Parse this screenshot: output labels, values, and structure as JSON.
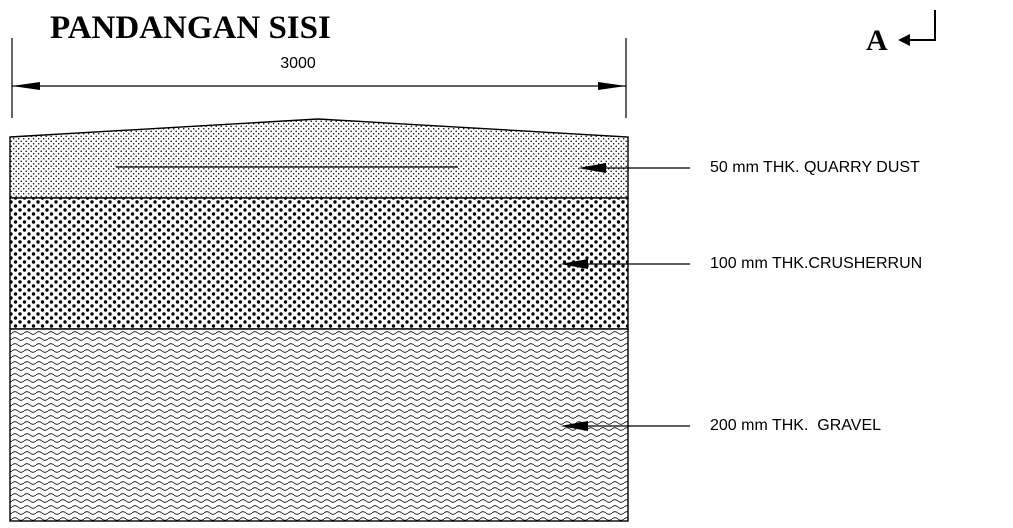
{
  "title": "PANDANGAN SISI",
  "section_marker": "A",
  "dimension": "3000",
  "layers": [
    {
      "label": "50 mm THK. QUARRY DUST",
      "pattern": "fine-dots"
    },
    {
      "label": "100 mm THK.CRUSHERRUN",
      "pattern": "coarse-dots"
    },
    {
      "label": "200 mm THK.  GRAVEL",
      "pattern": "waves"
    }
  ],
  "colors": {
    "line": "#000000",
    "background": "#ffffff"
  },
  "icons": {
    "section_arrow": "return-arrow-icon",
    "dimension_arrows": "arrowhead-icon",
    "leader_arrows": "arrowhead-icon"
  }
}
